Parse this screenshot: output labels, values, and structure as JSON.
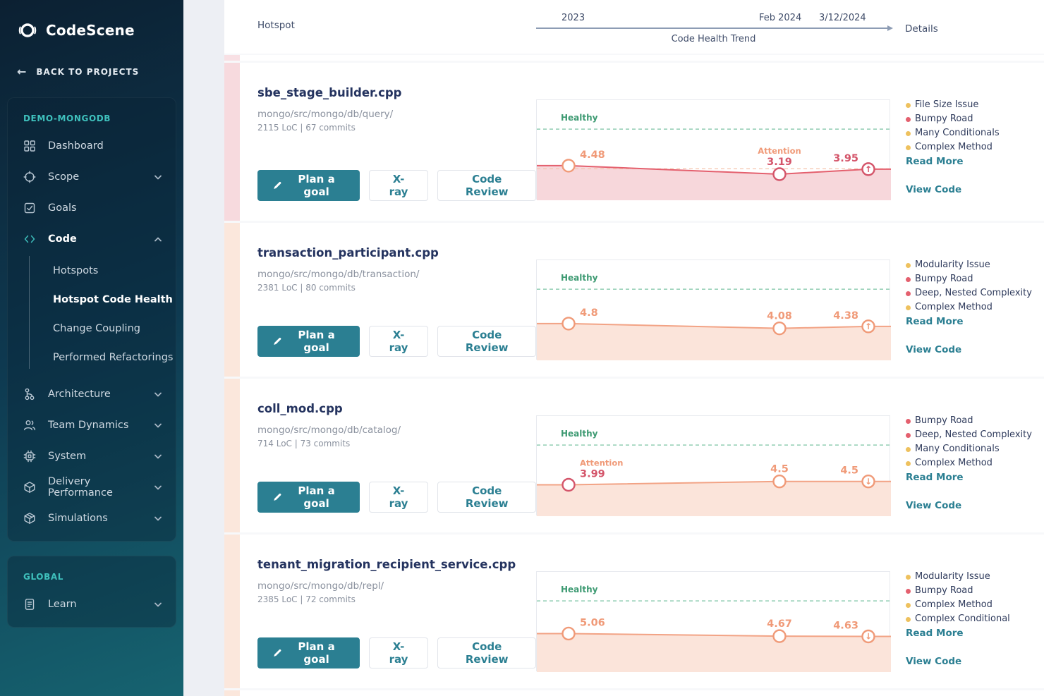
{
  "sidebar": {
    "logo_text": "CodeScene",
    "back_label": "BACK TO PROJECTS",
    "project_section": {
      "title": "DEMO-MONGODB",
      "items": [
        {
          "label": "Dashboard",
          "icon": "dashboard-icon",
          "chevron": null,
          "bold": false
        },
        {
          "label": "Scope",
          "icon": "scope-icon",
          "chevron": "down",
          "bold": false
        },
        {
          "label": "Goals",
          "icon": "goals-icon",
          "chevron": null,
          "bold": false
        },
        {
          "label": "Code",
          "icon": "code-icon",
          "chevron": "up",
          "bold": true,
          "children": [
            "Hotspots",
            "Hotspot Code Health",
            "Change Coupling",
            "Performed Refactorings"
          ],
          "active_child": "Hotspot Code Health"
        },
        {
          "label": "Architecture",
          "icon": "architecture-icon",
          "chevron": "down",
          "bold": false
        },
        {
          "label": "Team Dynamics",
          "icon": "team-dynamics-icon",
          "chevron": "down",
          "bold": false
        },
        {
          "label": "System",
          "icon": "system-icon",
          "chevron": "down",
          "bold": false
        },
        {
          "label": "Delivery Performance",
          "icon": "delivery-performance-icon",
          "chevron": "down",
          "bold": false
        },
        {
          "label": "Simulations",
          "icon": "simulations-icon",
          "chevron": "down",
          "bold": false
        }
      ]
    },
    "global_section": {
      "title": "GLOBAL",
      "items": [
        {
          "label": "Learn",
          "icon": "learn-icon",
          "chevron": "down",
          "bold": false
        }
      ]
    }
  },
  "header": {
    "hotspot_label": "Hotspot",
    "timeline": {
      "start": "2023",
      "mid": "Feb 2024",
      "end": "3/12/2024",
      "axis_label": "Code Health Trend"
    },
    "details_label": "Details"
  },
  "buttons": {
    "plan_goal": "Plan a goal",
    "xray": "X-ray",
    "code_review": "Code Review"
  },
  "links": {
    "read_more": "Read More",
    "view_code": "View Code"
  },
  "colors": {
    "accent_teal": "#2b7f92",
    "healthy_green": "#3d9a72",
    "attention_orange": "#f09a78",
    "alert_red": "#d4556a",
    "bullet_yellow": "#eec15e",
    "bullet_red": "#e4606e",
    "scroll_hint_top_stripe": "#f8e0e4",
    "scroll_hint_bottom_stripe": "#fbe7dc"
  },
  "cards": [
    {
      "file": "sbe_stage_builder.cpp",
      "path": "mongo/src/mongo/db/query/",
      "stats": "2115 LoC | 67 commits",
      "stripe_color": "#f7dade",
      "issues": [
        {
          "label": "File Size Issue",
          "severity": "yellow"
        },
        {
          "label": "Bumpy Road",
          "severity": "red"
        },
        {
          "label": "Many Conditionals",
          "severity": "yellow"
        },
        {
          "label": "Complex Method",
          "severity": "yellow"
        }
      ]
    },
    {
      "file": "transaction_participant.cpp",
      "path": "mongo/src/mongo/db/transaction/",
      "stats": "2381 LoC | 80 commits",
      "stripe_color": "#fbe7dc",
      "issues": [
        {
          "label": "Modularity Issue",
          "severity": "yellow"
        },
        {
          "label": "Bumpy Road",
          "severity": "red"
        },
        {
          "label": "Deep, Nested Complexity",
          "severity": "red"
        },
        {
          "label": "Complex Method",
          "severity": "yellow"
        }
      ]
    },
    {
      "file": "coll_mod.cpp",
      "path": "mongo/src/mongo/db/catalog/",
      "stats": "714 LoC | 73 commits",
      "stripe_color": "#fbe7dc",
      "issues": [
        {
          "label": "Bumpy Road",
          "severity": "red"
        },
        {
          "label": "Deep, Nested Complexity",
          "severity": "red"
        },
        {
          "label": "Many Conditionals",
          "severity": "yellow"
        },
        {
          "label": "Complex Method",
          "severity": "yellow"
        }
      ]
    },
    {
      "file": "tenant_migration_recipient_service.cpp",
      "path": "mongo/src/mongo/db/repl/",
      "stats": "2385 LoC | 72 commits",
      "stripe_color": "#fbe7dc",
      "issues": [
        {
          "label": "Modularity Issue",
          "severity": "yellow"
        },
        {
          "label": "Bumpy Road",
          "severity": "red"
        },
        {
          "label": "Complex Method",
          "severity": "yellow"
        },
        {
          "label": "Complex Conditional",
          "severity": "yellow"
        }
      ]
    }
  ],
  "chart_data": [
    {
      "type": "line",
      "title": "sbe_stage_builder.cpp code health trend",
      "x": [
        "2023",
        "Feb 2024",
        "3/12/2024"
      ],
      "values": [
        4.48,
        3.19,
        3.95
      ],
      "point_labels": [
        "4.48",
        "3.19",
        "3.95"
      ],
      "point_label_colors": [
        "orange",
        "red",
        "red"
      ],
      "point_markers": [
        "circle",
        "circle",
        "arrow-up"
      ],
      "point_marker_colors": [
        "orange",
        "red",
        "red"
      ],
      "annotations": [
        null,
        "Attention",
        null
      ],
      "healthy_label": "Healthy",
      "healthy_threshold": 10,
      "attention_threshold_line": 4.0,
      "line_color": "#e4606e",
      "fill_color": "#f7d7db",
      "ylim": [
        0,
        10
      ],
      "grid": false,
      "legend": "none"
    },
    {
      "type": "line",
      "title": "transaction_participant.cpp code health trend",
      "x": [
        "2023",
        "Feb 2024",
        "3/12/2024"
      ],
      "values": [
        4.8,
        4.08,
        4.38
      ],
      "point_labels": [
        "4.8",
        "4.08",
        "4.38"
      ],
      "point_label_colors": [
        "orange",
        "orange",
        "orange"
      ],
      "point_markers": [
        "circle",
        "circle",
        "arrow-up"
      ],
      "point_marker_colors": [
        "orange",
        "orange",
        "orange"
      ],
      "annotations": [
        null,
        null,
        null
      ],
      "healthy_label": "Healthy",
      "healthy_threshold": 10,
      "attention_threshold_line": null,
      "line_color": "#f2a385",
      "fill_color": "#fbe4da",
      "ylim": [
        0,
        10
      ],
      "grid": false,
      "legend": "none"
    },
    {
      "type": "line",
      "title": "coll_mod.cpp code health trend",
      "x": [
        "2023",
        "Feb 2024",
        "3/12/2024"
      ],
      "values": [
        3.99,
        4.5,
        4.5
      ],
      "point_labels": [
        "3.99",
        "4.5",
        "4.5"
      ],
      "point_label_colors": [
        "red",
        "orange",
        "orange"
      ],
      "point_markers": [
        "circle",
        "circle",
        "arrow-down"
      ],
      "point_marker_colors": [
        "red",
        "orange",
        "orange"
      ],
      "annotations": [
        "Attention",
        null,
        null
      ],
      "healthy_label": "Healthy",
      "healthy_threshold": 10,
      "attention_threshold_line": null,
      "line_color": "#f2a385",
      "fill_color": "#fbe4da",
      "ylim": [
        0,
        10
      ],
      "grid": false,
      "legend": "none"
    },
    {
      "type": "line",
      "title": "tenant_migration_recipient_service.cpp code health trend",
      "x": [
        "2023",
        "Feb 2024",
        "3/12/2024"
      ],
      "values": [
        5.06,
        4.67,
        4.63
      ],
      "point_labels": [
        "5.06",
        "4.67",
        "4.63"
      ],
      "point_label_colors": [
        "orange",
        "orange",
        "orange"
      ],
      "point_markers": [
        "circle",
        "circle",
        "arrow-down"
      ],
      "point_marker_colors": [
        "orange",
        "orange",
        "orange"
      ],
      "annotations": [
        null,
        null,
        null
      ],
      "healthy_label": "Healthy",
      "healthy_threshold": 10,
      "attention_threshold_line": null,
      "line_color": "#f2a385",
      "fill_color": "#fbe4da",
      "ylim": [
        0,
        10
      ],
      "grid": false,
      "legend": "none"
    }
  ]
}
